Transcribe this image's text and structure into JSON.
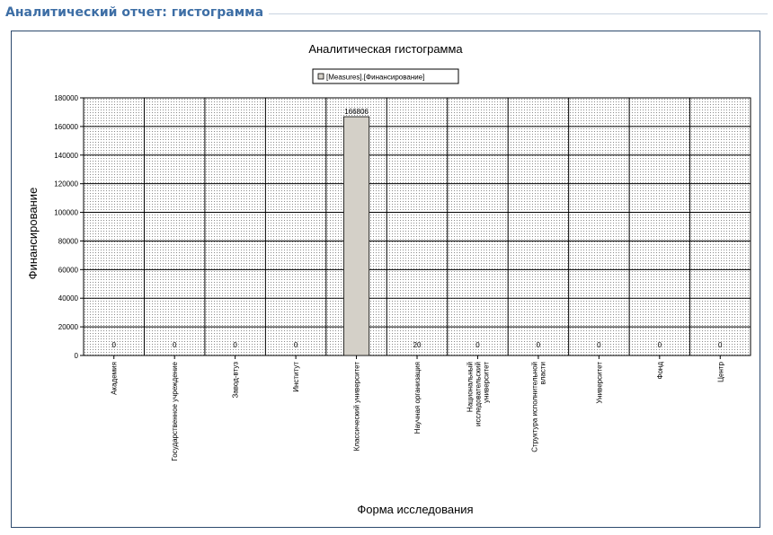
{
  "header": {
    "title": "Аналитический отчет: гистограмма"
  },
  "chart_data": {
    "type": "bar",
    "title": "Аналитическая гистограмма",
    "xlabel": "Форма исследования",
    "ylabel": "Финансирование",
    "legend": "top",
    "grid": true,
    "ylim": [
      0,
      180000
    ],
    "yticks": [
      0,
      20000,
      40000,
      60000,
      80000,
      100000,
      120000,
      140000,
      160000,
      180000
    ],
    "categories": [
      [
        "Академия"
      ],
      [
        "Государственное  учреждение"
      ],
      [
        "Завод-втуз"
      ],
      [
        "Институт"
      ],
      [
        "Классический университет"
      ],
      [
        "Научная организация"
      ],
      [
        "Национальный",
        "исследовательский",
        "университет"
      ],
      [
        "Структура исполнительной",
        "власти"
      ],
      [
        "Университет"
      ],
      [
        "Фонд"
      ],
      [
        "Центр"
      ]
    ],
    "series": [
      {
        "name": "[Measures].[Финансирование]",
        "values": [
          0,
          0,
          0,
          0,
          166806,
          20,
          0,
          0,
          0,
          0,
          0
        ],
        "data_labels": [
          "0",
          "0",
          "0",
          "0",
          "166806",
          "20",
          "0",
          "0",
          "0",
          "0",
          "0"
        ],
        "color": "#d4d0c8"
      }
    ]
  }
}
